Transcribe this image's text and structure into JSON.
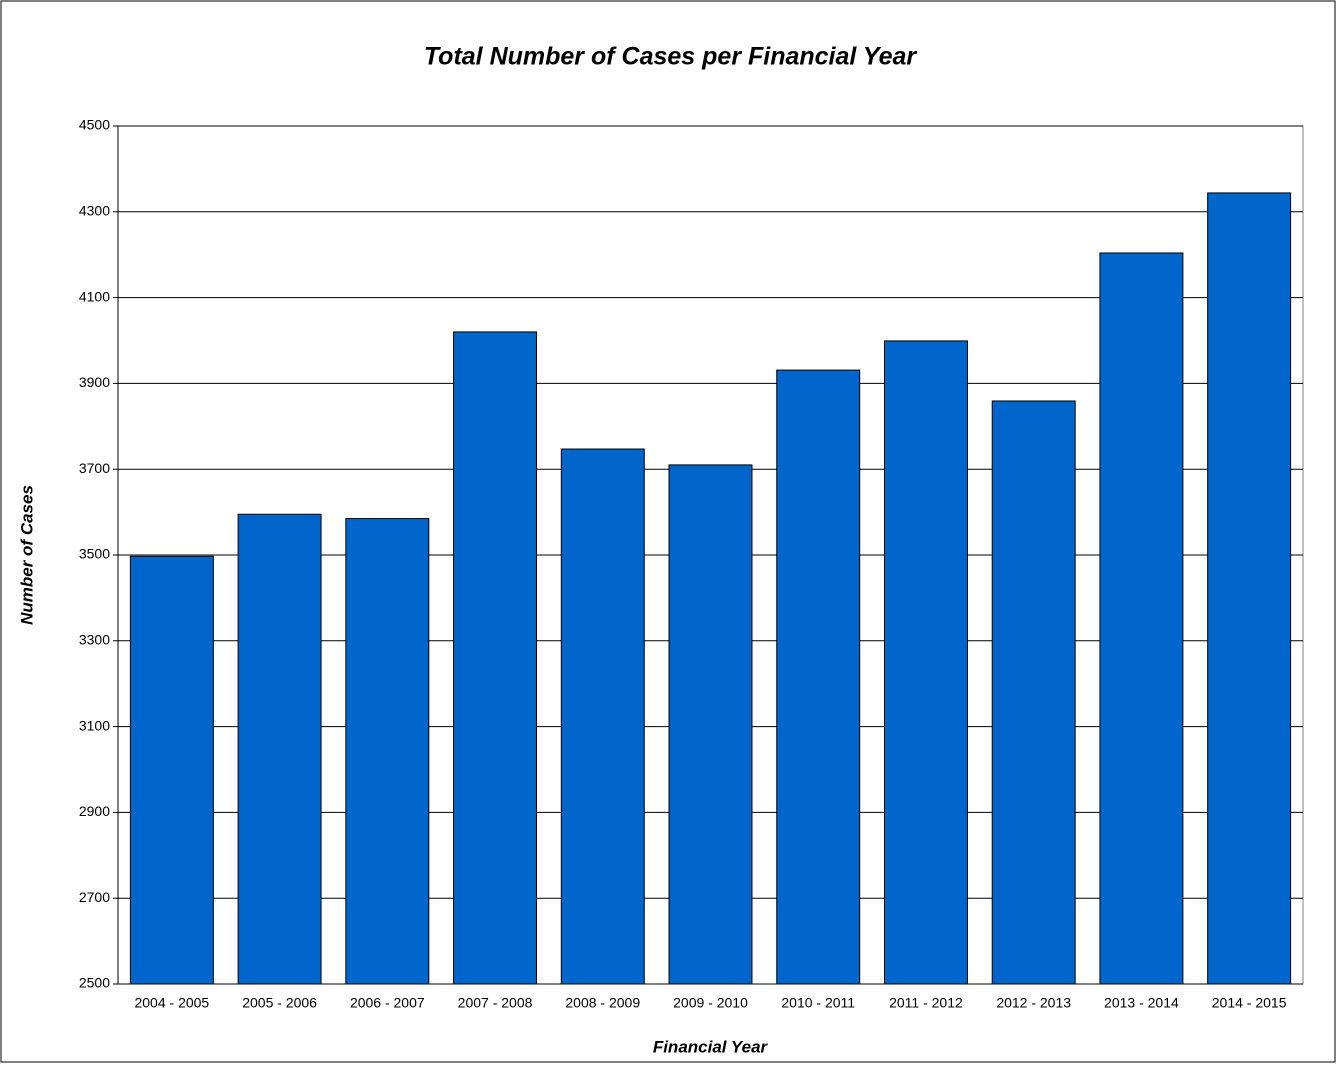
{
  "chart_data": {
    "type": "bar",
    "title": "Total Number of Cases per Financial Year",
    "x_label": "Financial Year",
    "y_label": "Number of Cases",
    "categories": [
      "2004 - 2005",
      "2005 - 2006",
      "2006 - 2007",
      "2007 - 2008",
      "2008 - 2009",
      "2009 - 2010",
      "2010 - 2011",
      "2011 - 2012",
      "2012 - 2013",
      "2013 - 2014",
      "2014 - 2015"
    ],
    "values": [
      3497,
      3595,
      3585,
      4020,
      3747,
      3710,
      3931,
      3999,
      3859,
      4204,
      4344
    ],
    "color": "#0066cc",
    "ylim": [
      2500,
      4500
    ],
    "yticks": [
      2500,
      2700,
      2900,
      3100,
      3300,
      3500,
      3700,
      3900,
      4100,
      4300,
      4500
    ],
    "grid": true
  }
}
